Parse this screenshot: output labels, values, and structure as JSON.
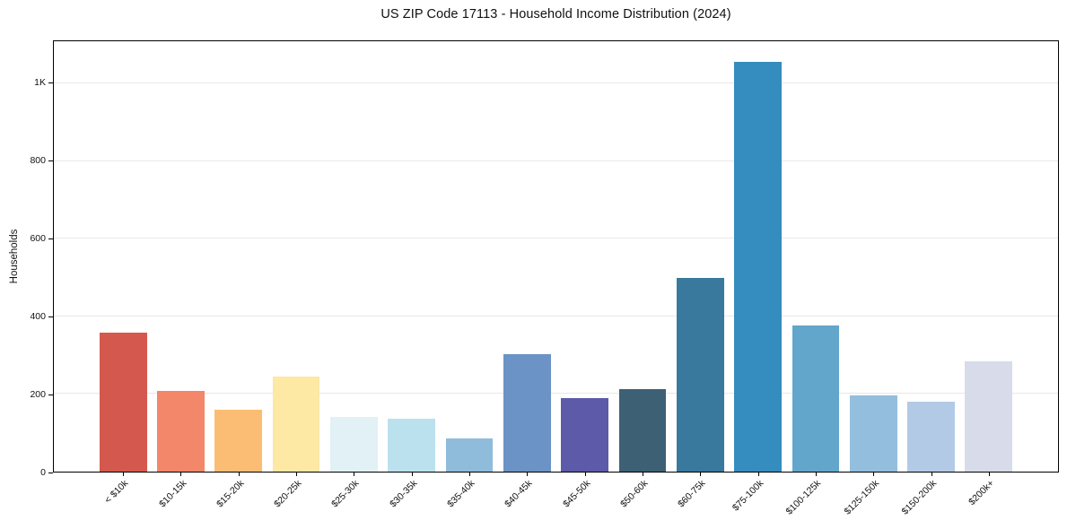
{
  "chart_data": {
    "type": "bar",
    "title": "US ZIP Code 17113 - Household Income Distribution (2024)",
    "xlabel": "",
    "ylabel": "Households",
    "categories": [
      "< $10k",
      "$10-15k",
      "$15-20k",
      "$20-25k",
      "$25-30k",
      "$30-35k",
      "$35-40k",
      "$40-45k",
      "$45-50k",
      "$50-60k",
      "$60-75k",
      "$75-100k",
      "$100-125k",
      "$125-150k",
      "$150-200k",
      "$200k+"
    ],
    "values": [
      357,
      209,
      160,
      245,
      141,
      137,
      85,
      302,
      190,
      212,
      500,
      1056,
      377,
      196,
      181,
      284
    ],
    "bar_colors": [
      "#d5584e",
      "#f2876a",
      "#fbbd74",
      "#fde8a4",
      "#e1f1f6",
      "#bce1ee",
      "#8fbcdb",
      "#6b93c5",
      "#5d5aa9",
      "#3d6075",
      "#38799d",
      "#348dbe",
      "#63a6cc",
      "#93bedd",
      "#b3cae6",
      "#d8dbe9"
    ],
    "ylim": [
      0,
      1109
    ],
    "yticks": [
      {
        "value": 0,
        "label": "0"
      },
      {
        "value": 200,
        "label": "200"
      },
      {
        "value": 400,
        "label": "400"
      },
      {
        "value": 600,
        "label": "600"
      },
      {
        "value": 800,
        "label": "800"
      },
      {
        "value": 1000,
        "label": "1K"
      }
    ],
    "grid": "horizontal",
    "gridline_color": "#e8e8e8",
    "spine_color": "#000000",
    "x_tick_rotation": 45,
    "legend": "none"
  }
}
